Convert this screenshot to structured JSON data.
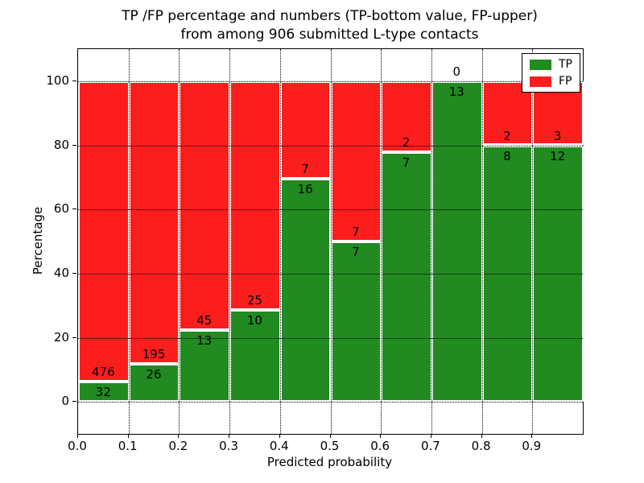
{
  "chart_data": {
    "type": "bar",
    "variant": "stacked-percentage-histogram",
    "title_lines": [
      "TP /FP percentage and numbers (TP-bottom value, FP-upper)",
      "from among 906 submitted L-type contacts"
    ],
    "xlabel": "Predicted probability",
    "ylabel": "Percentage",
    "categories": [
      "0.0-0.1",
      "0.1-0.2",
      "0.2-0.3",
      "0.3-0.4",
      "0.4-0.5",
      "0.5-0.6",
      "0.6-0.7",
      "0.7-0.8",
      "0.8-0.9",
      "0.9-1.0"
    ],
    "xtick_labels": [
      "0.0",
      "0.1",
      "0.2",
      "0.3",
      "0.4",
      "0.5",
      "0.6",
      "0.7",
      "0.8",
      "0.9"
    ],
    "ytick_values": [
      0,
      20,
      40,
      60,
      80,
      100
    ],
    "ytick_labels": [
      "0",
      "20",
      "40",
      "60",
      "80",
      "100"
    ],
    "ylim": [
      -10,
      110
    ],
    "xlim": [
      0.0,
      1.0
    ],
    "grid": "dotted both axes",
    "series": [
      {
        "name": "TP",
        "color": "#218a21",
        "counts": [
          32,
          26,
          13,
          10,
          16,
          7,
          7,
          13,
          8,
          12
        ]
      },
      {
        "name": "FP",
        "color": "#fc1d1d",
        "counts": [
          476,
          195,
          45,
          25,
          7,
          7,
          2,
          0,
          2,
          3
        ]
      }
    ],
    "tp_percent_of_bin": [
      6.3,
      11.8,
      22.4,
      28.6,
      69.6,
      50.0,
      77.8,
      100.0,
      80.0,
      80.0
    ],
    "total_contacts_in_title": "906",
    "legend": {
      "position": "upper right",
      "entries": [
        {
          "label": "TP",
          "color": "#218a21"
        },
        {
          "label": "FP",
          "color": "#fc1d1d"
        }
      ]
    }
  }
}
